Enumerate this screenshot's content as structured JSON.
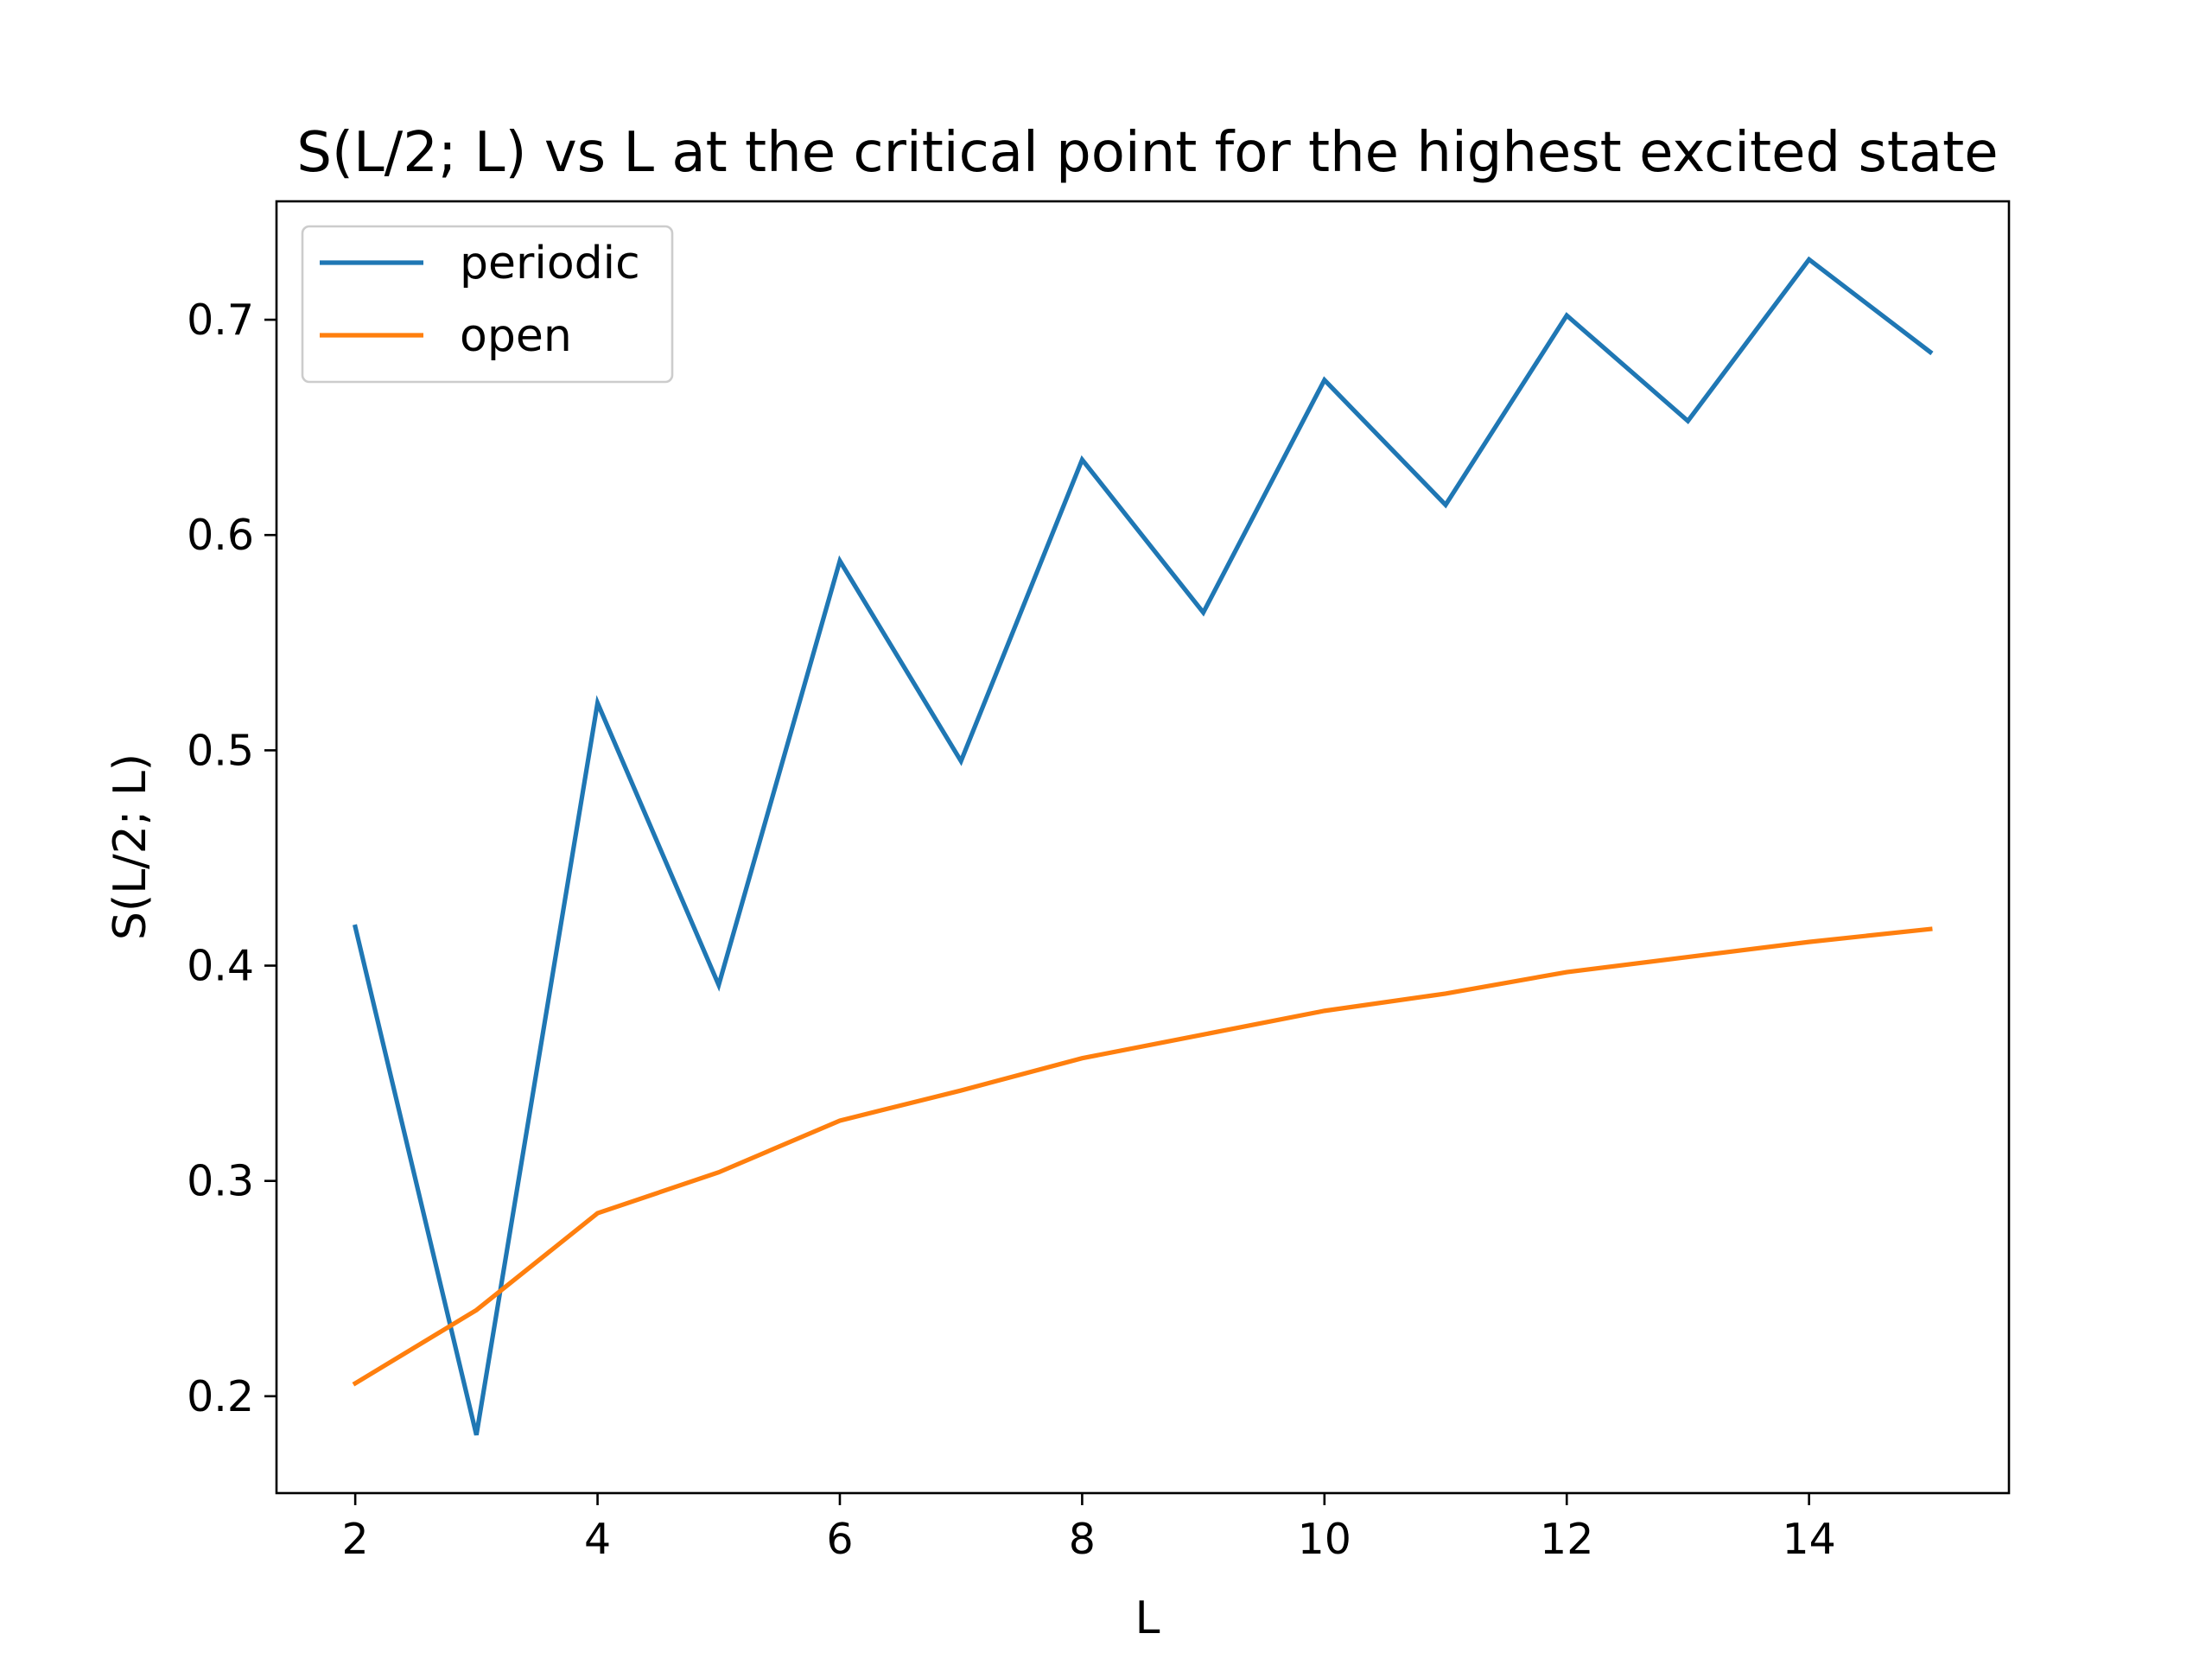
{
  "chart_data": {
    "type": "line",
    "title": "S(L/2; L) vs L at the critical point for the highest excited state",
    "xlabel": "L",
    "ylabel": "S(L/2; L)",
    "x": [
      2,
      3,
      4,
      5,
      6,
      7,
      8,
      9,
      10,
      11,
      12,
      13,
      14,
      15
    ],
    "xlim": [
      1.35,
      15.65
    ],
    "ylim": [
      0.155,
      0.755
    ],
    "xticks": [
      2,
      4,
      6,
      8,
      10,
      12,
      14
    ],
    "yticks": [
      0.2,
      0.3,
      0.4,
      0.5,
      0.6,
      0.7
    ],
    "xtick_labels": [
      "2",
      "4",
      "6",
      "8",
      "10",
      "12",
      "14"
    ],
    "ytick_labels": [
      "0.2",
      "0.3",
      "0.4",
      "0.5",
      "0.6",
      "0.7"
    ],
    "grid": false,
    "legend_position": "top-left",
    "series": [
      {
        "name": "periodic",
        "color": "#1f77b4",
        "values": [
          0.418,
          0.182,
          0.522,
          0.391,
          0.588,
          0.495,
          0.635,
          0.564,
          0.672,
          0.614,
          0.702,
          0.653,
          0.728,
          0.685
        ]
      },
      {
        "name": "open",
        "color": "#ff7f0e",
        "values": [
          0.206,
          0.24,
          0.285,
          0.304,
          0.328,
          0.342,
          0.357,
          0.368,
          0.379,
          0.387,
          0.397,
          0.404,
          0.411,
          0.417
        ]
      }
    ]
  }
}
